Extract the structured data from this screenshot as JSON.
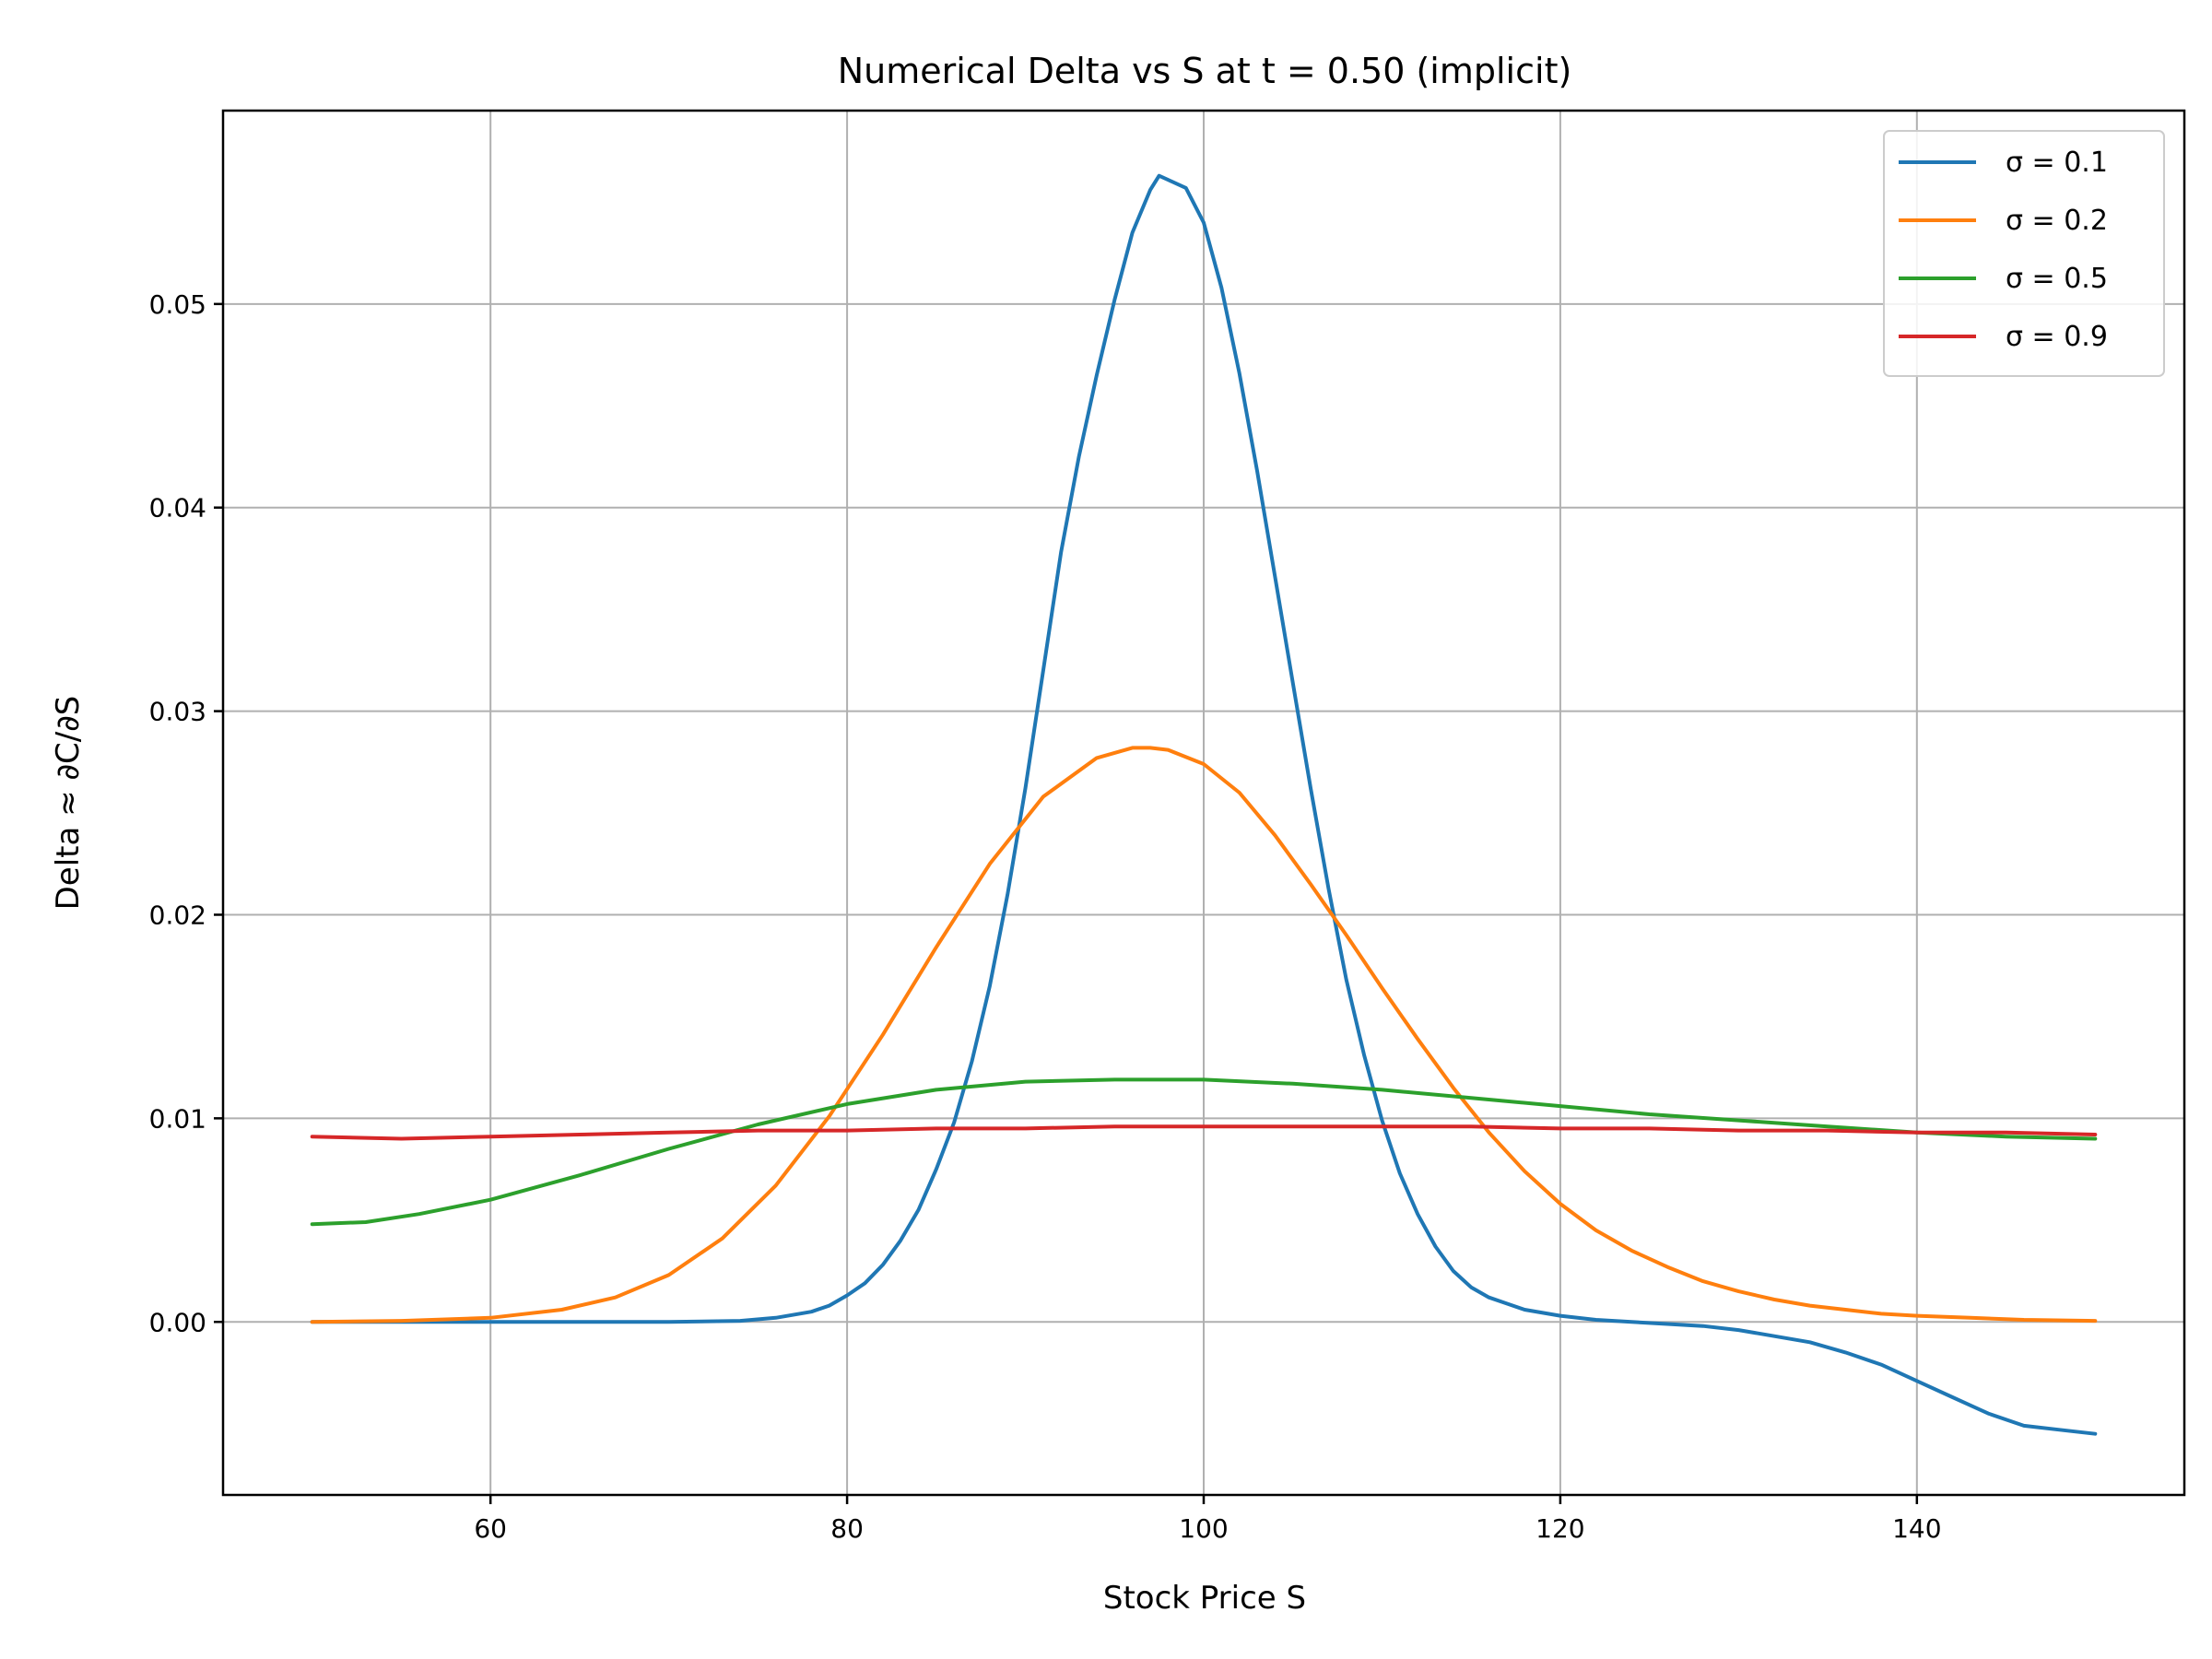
{
  "chart_data": {
    "type": "line",
    "title": "Numerical Delta vs S at t = 0.50 (implicit)",
    "xlabel": "Stock Price S",
    "ylabel": "Delta ≈ ∂C/∂S",
    "xlim": [
      45,
      155
    ],
    "ylim": [
      -0.0085,
      0.0595
    ],
    "xticks": [
      60,
      80,
      100,
      120,
      140
    ],
    "xtick_labels": [
      "60",
      "80",
      "100",
      "120",
      "140"
    ],
    "yticks": [
      0.0,
      0.01,
      0.02,
      0.03,
      0.04,
      0.05
    ],
    "ytick_labels": [
      "0.00",
      "0.01",
      "0.02",
      "0.03",
      "0.04",
      "0.05"
    ],
    "grid": true,
    "legend_position": "top-right",
    "series": [
      {
        "name": "σ = 0.1",
        "color": "#1f77b4",
        "x": [
          50,
          60,
          70,
          74,
          76,
          78,
          79,
          80,
          81,
          82,
          83,
          84,
          85,
          86,
          87,
          88,
          89,
          90,
          91,
          92,
          93,
          94,
          95,
          96,
          97,
          97.5,
          98,
          99,
          100,
          101,
          102,
          103,
          104,
          105,
          106,
          107,
          108,
          109,
          110,
          111,
          112,
          113,
          114,
          115,
          116,
          117,
          118,
          120,
          122,
          124,
          126,
          128,
          130,
          132,
          134,
          136,
          138,
          140,
          142,
          144,
          146,
          148,
          150
        ],
        "y": [
          0.0,
          0.0,
          0.0,
          5e-05,
          0.0002,
          0.0005,
          0.0008,
          0.0013,
          0.0019,
          0.0028,
          0.004,
          0.0055,
          0.0075,
          0.0098,
          0.0128,
          0.0165,
          0.021,
          0.0262,
          0.032,
          0.0378,
          0.0425,
          0.0465,
          0.0502,
          0.0535,
          0.0556,
          0.0563,
          0.0561,
          0.0557,
          0.054,
          0.0508,
          0.0466,
          0.0418,
          0.0366,
          0.0314,
          0.0262,
          0.0213,
          0.0168,
          0.0131,
          0.0099,
          0.0073,
          0.0053,
          0.0037,
          0.0025,
          0.0017,
          0.0012,
          0.0009,
          0.0006,
          0.0003,
          0.0001,
          0.0,
          -0.0001,
          -0.0002,
          -0.0004,
          -0.0007,
          -0.001,
          -0.0015,
          -0.0021,
          -0.0029,
          -0.0037,
          -0.0045,
          -0.0051,
          -0.0053,
          -0.0055
        ]
      },
      {
        "name": "σ = 0.2",
        "color": "#ff7f0e",
        "x": [
          50,
          55,
          60,
          64,
          67,
          70,
          73,
          76,
          79,
          82,
          85,
          88,
          91,
          94,
          96,
          97,
          98,
          100,
          102,
          104,
          106,
          108,
          110,
          112,
          114,
          116,
          118,
          120,
          122,
          124,
          126,
          128,
          130,
          132,
          134,
          136,
          138,
          140,
          143,
          146,
          150
        ],
        "y": [
          0.0,
          5e-05,
          0.0002,
          0.0006,
          0.0012,
          0.0023,
          0.0041,
          0.0067,
          0.0101,
          0.0141,
          0.0184,
          0.0225,
          0.0258,
          0.0277,
          0.0282,
          0.0282,
          0.0281,
          0.0274,
          0.026,
          0.0239,
          0.0215,
          0.019,
          0.0164,
          0.0139,
          0.0115,
          0.0093,
          0.0074,
          0.0058,
          0.0045,
          0.0035,
          0.0027,
          0.002,
          0.0015,
          0.0011,
          0.0008,
          0.0006,
          0.0004,
          0.0003,
          0.0002,
          0.0001,
          5e-05
        ]
      },
      {
        "name": "σ = 0.5",
        "color": "#2ca02c",
        "x": [
          50,
          53,
          56,
          60,
          65,
          70,
          75,
          80,
          85,
          90,
          95,
          100,
          105,
          110,
          115,
          120,
          125,
          130,
          135,
          140,
          145,
          150
        ],
        "y": [
          0.0048,
          0.0049,
          0.0053,
          0.006,
          0.0072,
          0.0085,
          0.0097,
          0.0107,
          0.0114,
          0.0118,
          0.0119,
          0.0119,
          0.0117,
          0.0114,
          0.011,
          0.0106,
          0.0102,
          0.0099,
          0.0096,
          0.0093,
          0.0091,
          0.009
        ]
      },
      {
        "name": "σ = 0.9",
        "color": "#d62728",
        "x": [
          50,
          55,
          60,
          65,
          70,
          75,
          80,
          85,
          90,
          95,
          100,
          105,
          110,
          115,
          120,
          125,
          130,
          135,
          140,
          145,
          150
        ],
        "y": [
          0.0091,
          0.009,
          0.0091,
          0.0092,
          0.0093,
          0.0094,
          0.0094,
          0.0095,
          0.0095,
          0.0096,
          0.0096,
          0.0096,
          0.0096,
          0.0096,
          0.0095,
          0.0095,
          0.0094,
          0.0094,
          0.0093,
          0.0093,
          0.0092
        ]
      }
    ]
  }
}
